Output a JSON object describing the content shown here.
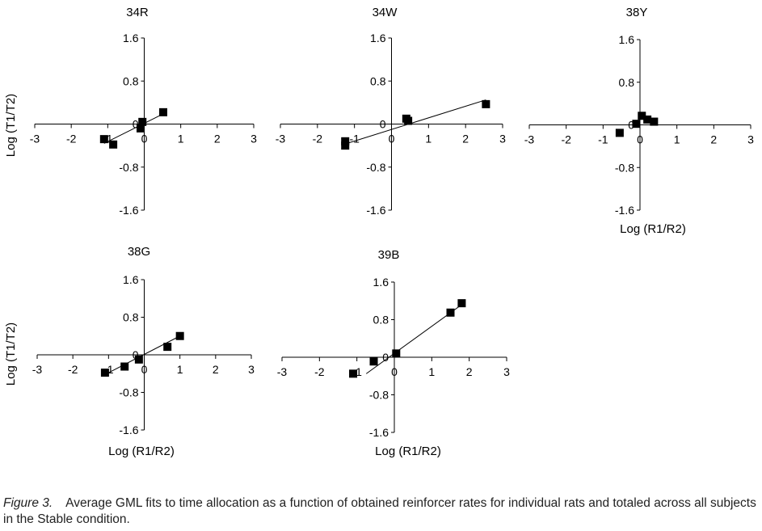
{
  "chart_data": [
    {
      "type": "scatter",
      "title": "34R",
      "xlabel": "",
      "ylabel": "Log (T1/T2)",
      "xlim": [
        -3,
        3
      ],
      "ylim": [
        -1.6,
        1.6
      ],
      "xticks": [
        "-3",
        "-2",
        "-1",
        "0",
        "1",
        "2",
        "3"
      ],
      "yticks": [
        "1.6",
        "0.8",
        "0",
        "-0.8",
        "-1.6"
      ],
      "points": [
        [
          -1.1,
          -0.28
        ],
        [
          -0.85,
          -0.38
        ],
        [
          -0.1,
          -0.08
        ],
        [
          -0.05,
          0.04
        ],
        [
          0.52,
          0.22
        ]
      ],
      "fit": [
        [
          -1.1,
          -0.36
        ],
        [
          0.55,
          0.2
        ]
      ]
    },
    {
      "type": "scatter",
      "title": "34W",
      "xlabel": "",
      "ylabel": "",
      "xlim": [
        -3,
        3
      ],
      "ylim": [
        -1.6,
        1.6
      ],
      "xticks": [
        "-3",
        "-2",
        "-1",
        "0",
        "1",
        "2",
        "3"
      ],
      "yticks": [
        "1.6",
        "0.8",
        "0",
        "-0.8",
        "-1.6"
      ],
      "points": [
        [
          -1.25,
          -0.32
        ],
        [
          -1.25,
          -0.4
        ],
        [
          0.4,
          0.1
        ],
        [
          0.45,
          0.06
        ],
        [
          2.55,
          0.37
        ]
      ],
      "fit": [
        [
          -1.25,
          -0.37
        ],
        [
          2.55,
          0.45
        ]
      ]
    },
    {
      "type": "scatter",
      "title": "38Y",
      "xlabel": "Log (R1/R2)",
      "ylabel": "",
      "xlim": [
        -3,
        3
      ],
      "ylim": [
        -1.6,
        1.6
      ],
      "xticks": [
        "-3",
        "-2",
        "-1",
        "0",
        "1",
        "2",
        "3"
      ],
      "yticks": [
        "1.6",
        "0.8",
        "0",
        "-0.8",
        "-1.6"
      ],
      "points": [
        [
          -0.55,
          -0.15
        ],
        [
          -0.1,
          0.02
        ],
        [
          0.05,
          0.17
        ],
        [
          0.2,
          0.1
        ],
        [
          0.38,
          0.06
        ]
      ],
      "fit": null
    },
    {
      "type": "scatter",
      "title": "38G",
      "xlabel": "Log (R1/R2)",
      "ylabel": "Log (T1/T2)",
      "xlim": [
        -3,
        3
      ],
      "ylim": [
        -1.6,
        1.6
      ],
      "xticks": [
        "-3",
        "-2",
        "-1",
        "0",
        "1",
        "2",
        "3"
      ],
      "yticks": [
        "1.6",
        "0.8",
        "0",
        "-0.8",
        "-1.6"
      ],
      "points": [
        [
          -1.1,
          -0.38
        ],
        [
          -0.55,
          -0.25
        ],
        [
          -0.15,
          -0.1
        ],
        [
          0.65,
          0.17
        ],
        [
          1.0,
          0.4
        ]
      ],
      "fit": [
        [
          -1.1,
          -0.42
        ],
        [
          1.0,
          0.4
        ]
      ]
    },
    {
      "type": "scatter",
      "title": "39B",
      "xlabel": "Log (R1/R2)",
      "ylabel": "",
      "xlim": [
        -3,
        3
      ],
      "ylim": [
        -1.6,
        1.6
      ],
      "xticks": [
        "-3",
        "-2",
        "-1",
        "0",
        "1",
        "2",
        "3"
      ],
      "yticks": [
        "1.6",
        "0.8",
        "0",
        "-0.8",
        "-1.6"
      ],
      "points": [
        [
          -1.1,
          -0.35
        ],
        [
          -0.55,
          -0.09
        ],
        [
          0.05,
          0.08
        ],
        [
          1.5,
          0.95
        ],
        [
          1.8,
          1.15
        ]
      ],
      "fit": [
        [
          -0.75,
          -0.35
        ],
        [
          1.8,
          1.12
        ]
      ]
    }
  ],
  "caption": {
    "label": "Figure 3.",
    "text": "Average GML fits to time allocation as a function of obtained reinforcer rates for individual rats and totaled across all subjects in the Stable condition."
  }
}
